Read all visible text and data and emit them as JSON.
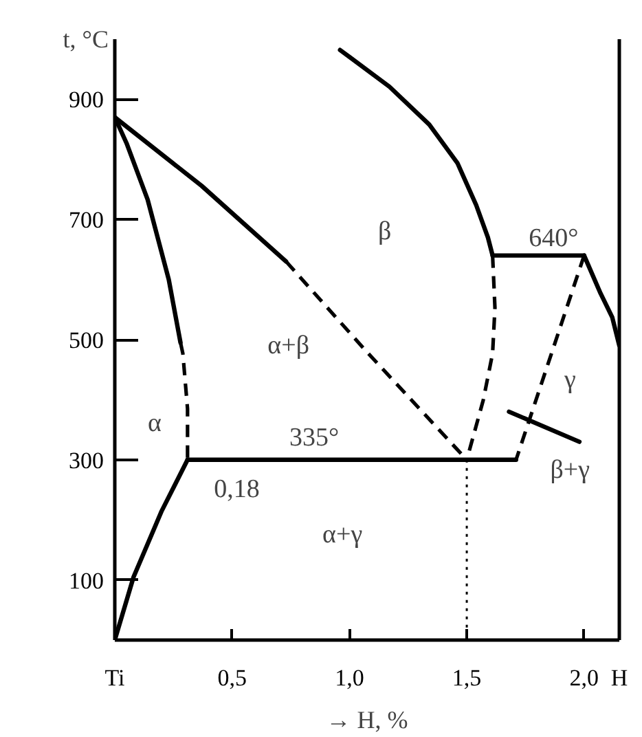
{
  "chart_data": {
    "type": "line",
    "xlabel": "→ H, %",
    "ylabel": "t, °C",
    "xlim": [
      0,
      2.15
    ],
    "ylim": [
      0,
      1000
    ],
    "xticks": [
      {
        "value": 0,
        "label": "Ti"
      },
      {
        "value": 0.5,
        "label": "0,5"
      },
      {
        "value": 1,
        "label": "1,0"
      },
      {
        "value": 1.5,
        "label": "1,5"
      },
      {
        "value": 2,
        "label": "2,0"
      },
      {
        "value": 2.15,
        "label": "H"
      }
    ],
    "yticks": [
      100,
      300,
      500,
      700,
      900
    ],
    "grid": false,
    "series": [
      {
        "color": "#000000",
        "line_style": "solid",
        "x": [
          0,
          0.05,
          0.14,
          0.23,
          0.28
        ],
        "values": [
          870,
          827,
          733,
          600,
          495
        ]
      },
      {
        "color": "#000000",
        "line_style": "dashed",
        "x": [
          0.28,
          0.29,
          0.31,
          0.31
        ],
        "values": [
          495,
          477,
          385,
          300
        ]
      },
      {
        "color": "#000000",
        "line_style": "solid",
        "x": [
          0.31,
          1.71
        ],
        "values": [
          300,
          300
        ]
      },
      {
        "color": "#000000",
        "line_style": "solid",
        "x": [
          0,
          0.08,
          0.2,
          0.31
        ],
        "values": [
          0,
          105,
          215,
          300
        ]
      },
      {
        "color": "#000000",
        "line_style": "solid",
        "x": [
          0,
          0.37,
          0.73
        ],
        "values": [
          870,
          756,
          630
        ]
      },
      {
        "color": "#000000",
        "line_style": "dashed",
        "x": [
          0.73,
          1.08,
          1.5
        ],
        "values": [
          630,
          477,
          300
        ]
      },
      {
        "color": "#000000",
        "line_style": "solid",
        "x": [
          0.96,
          1.17,
          1.34,
          1.46,
          1.54,
          1.59,
          1.61
        ],
        "values": [
          982,
          921,
          858,
          794,
          724,
          670,
          640
        ]
      },
      {
        "color": "#000000",
        "line_style": "dashed",
        "x": [
          1.61,
          1.62,
          1.61,
          1.57,
          1.5
        ],
        "values": [
          640,
          553,
          477,
          399,
          300
        ]
      },
      {
        "color": "#000000",
        "line_style": "solid",
        "x": [
          1.61,
          2.0
        ],
        "values": [
          640,
          640
        ]
      },
      {
        "color": "#000000",
        "line_style": "solid",
        "x": [
          2.0,
          2.07,
          2.12,
          2.15
        ],
        "values": [
          640,
          577,
          537,
          490
        ]
      },
      {
        "color": "#000000",
        "line_style": "dashed",
        "x": [
          2.0,
          1.71
        ],
        "values": [
          640,
          300
        ]
      },
      {
        "color": "#000000",
        "line_style": "solid",
        "x": [
          1.68,
          1.98
        ],
        "values": [
          380,
          330
        ]
      },
      {
        "color": "#000000",
        "line_style": "dotted",
        "x": [
          1.5,
          1.5
        ],
        "values": [
          300,
          0
        ]
      }
    ],
    "annotations": [
      "α",
      "α+β",
      "β",
      "640°",
      "γ",
      "β+γ",
      "335°",
      "0,18",
      "α+γ"
    ]
  }
}
